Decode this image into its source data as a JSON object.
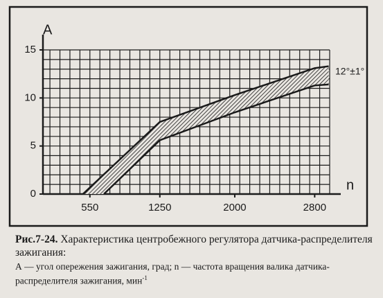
{
  "chart_data": {
    "type": "band",
    "y_label": "A",
    "x_label": "n",
    "annotation": "12°±1°",
    "xlim": [
      80,
      2950
    ],
    "ylim": [
      0,
      15
    ],
    "xticks": [
      550,
      1250,
      2000,
      2800
    ],
    "yticks": [
      0,
      5,
      10,
      15
    ],
    "grid": true,
    "color": "#1a1a1a",
    "series": [
      {
        "x": [
          480,
          1250,
          2000,
          2800,
          2940
        ],
        "values": [
          0,
          7.5,
          10.3,
          13.1,
          13.3
        ]
      },
      {
        "x": [
          690,
          1250,
          2000,
          2800,
          2940
        ],
        "values": [
          0,
          5.6,
          8.5,
          11.3,
          11.4
        ]
      }
    ],
    "caption": {
      "label": "Рис.7-24.",
      "title": "Характеристика центробежного регулятора датчика-распределителя зажигания:",
      "note": "А — угол опережения зажигания, град; n — частота вращения валика датчика-распределителя зажигания, мин",
      "note_sup": "-1"
    }
  }
}
